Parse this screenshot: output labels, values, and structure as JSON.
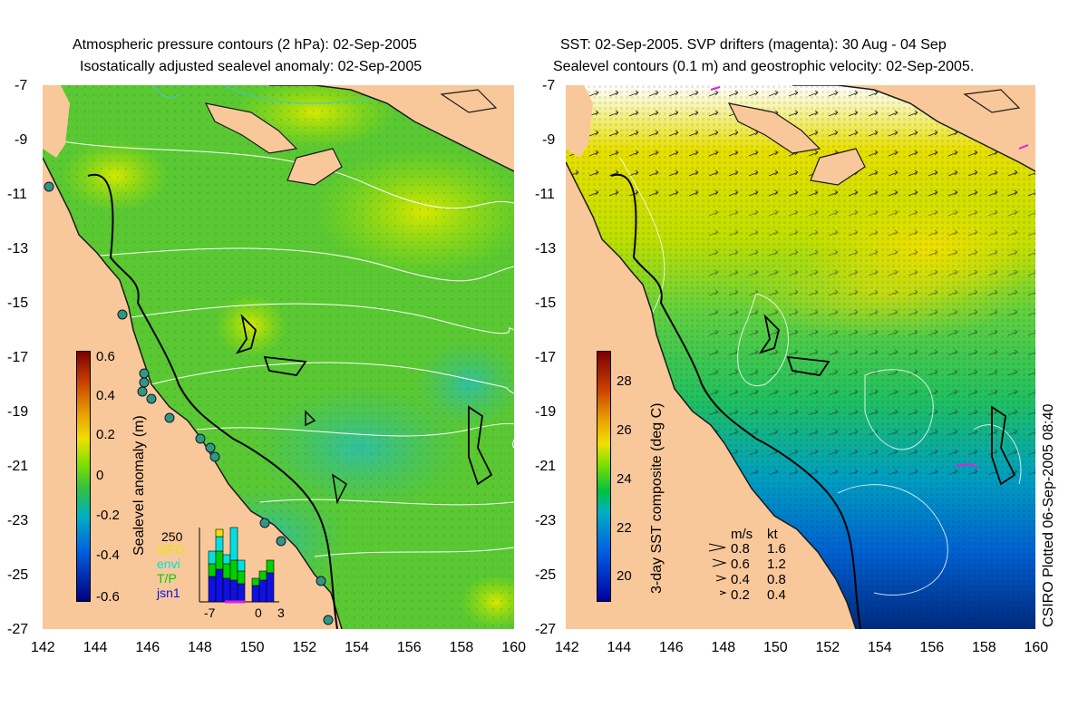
{
  "left_panel": {
    "title_line1": "Atmospheric pressure contours (2 hPa): 02-Sep-2005",
    "title_line2": "Isostatically adjusted sealevel anomaly: 02-Sep-2005",
    "colorbar_label": "Sealevel anomaly (m)",
    "colorbar_ticks": [
      "0.6",
      "0.4",
      "0.2",
      "0",
      "-0.2",
      "-0.4",
      "-0.6"
    ],
    "histogram": {
      "y_tick": "250",
      "legend": [
        {
          "label": "GFO",
          "color": "#e6e600"
        },
        {
          "label": "envi",
          "color": "#00e0e0"
        },
        {
          "label": "T/P",
          "color": "#00d000"
        },
        {
          "label": "jsn1",
          "color": "#1010e0"
        }
      ],
      "x_ticks": [
        "-7",
        "0",
        "3"
      ]
    }
  },
  "right_panel": {
    "title_line1": "SST: 02-Sep-2005. SVP drifters (magenta): 30 Aug - 04 Sep",
    "title_line2": "Sealevel contours (0.1 m) and geostrophic velocity: 02-Sep-2005.",
    "colorbar_label": "3-day SST composite (deg C)",
    "colorbar_ticks": [
      "28",
      "26",
      "24",
      "22",
      "20"
    ],
    "velocity_legend": {
      "header_ms": "m/s",
      "header_kt": "kt",
      "rows": [
        {
          "ms": "0.8",
          "kt": "1.6"
        },
        {
          "ms": "0.6",
          "kt": "1.2"
        },
        {
          "ms": "0.4",
          "kt": "0.8"
        },
        {
          "ms": "0.2",
          "kt": "0.4"
        }
      ]
    },
    "credit": "CSIRO Plotted 06-Sep-2005 08:40"
  },
  "axes": {
    "y_ticks": [
      "-7",
      "-9",
      "-11",
      "-13",
      "-15",
      "-17",
      "-19",
      "-21",
      "-23",
      "-25",
      "-27"
    ],
    "x_ticks": [
      "142",
      "144",
      "146",
      "148",
      "150",
      "152",
      "154",
      "156",
      "158",
      "160"
    ]
  },
  "colors": {
    "land": "#f9c89a",
    "sla_base": "#5ac832",
    "sst_colorbar": [
      "#7a0000",
      "#c84000",
      "#e8a000",
      "#f0e000",
      "#80e000",
      "#00c040",
      "#00b0c0",
      "#0060e0",
      "#0000a0"
    ],
    "sla_colorbar": [
      "#7a0000",
      "#c84000",
      "#e8a000",
      "#f0e000",
      "#80e000",
      "#30c040",
      "#00b0c0",
      "#0060e0",
      "#000080"
    ]
  }
}
